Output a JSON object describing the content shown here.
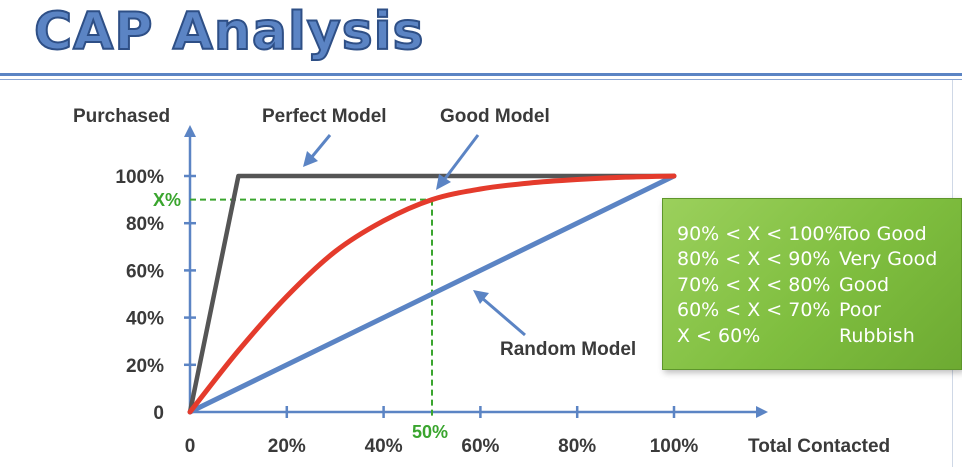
{
  "slide": {
    "title": "CAP Analysis"
  },
  "chart_data": {
    "type": "line",
    "ylabel": "Purchased",
    "xlabel": "Total Contacted",
    "x_ticks": [
      "0",
      "20%",
      "40%",
      "60%",
      "80%",
      "100%"
    ],
    "y_ticks": [
      "0",
      "20%",
      "40%",
      "60%",
      "80%",
      "100%"
    ],
    "xlim": [
      0,
      100
    ],
    "ylim": [
      0,
      100
    ],
    "series": [
      {
        "name": "Perfect Model",
        "color": "#555555",
        "x": [
          0,
          10,
          100
        ],
        "y": [
          0,
          100,
          100
        ]
      },
      {
        "name": "Good Model",
        "color": "#e43b2c",
        "x": [
          0,
          10,
          20,
          30,
          40,
          50,
          60,
          70,
          80,
          90,
          100
        ],
        "y": [
          0,
          26,
          49,
          68,
          81,
          90,
          94.5,
          97,
          98.5,
          99.5,
          100
        ]
      },
      {
        "name": "Random Model",
        "color": "#5b84c4",
        "x": [
          0,
          100
        ],
        "y": [
          0,
          100
        ]
      }
    ],
    "annotations": {
      "x_marker": {
        "label": "50%",
        "x": 50,
        "color": "#3aa52e"
      },
      "y_marker": {
        "label": "X%",
        "y": 90,
        "color": "#3aa52e"
      }
    },
    "guide": {
      "color": "#8cc54b",
      "rows": [
        {
          "range": "90% < X < 100%",
          "label": "Too Good"
        },
        {
          "range": "80% < X < 90%",
          "label": "Very Good"
        },
        {
          "range": "70% < X < 80%",
          "label": "Good"
        },
        {
          "range": "60% < X < 70%",
          "label": "Poor"
        },
        {
          "range": "X < 60%",
          "label": "Rubbish"
        }
      ]
    },
    "grid": false
  }
}
